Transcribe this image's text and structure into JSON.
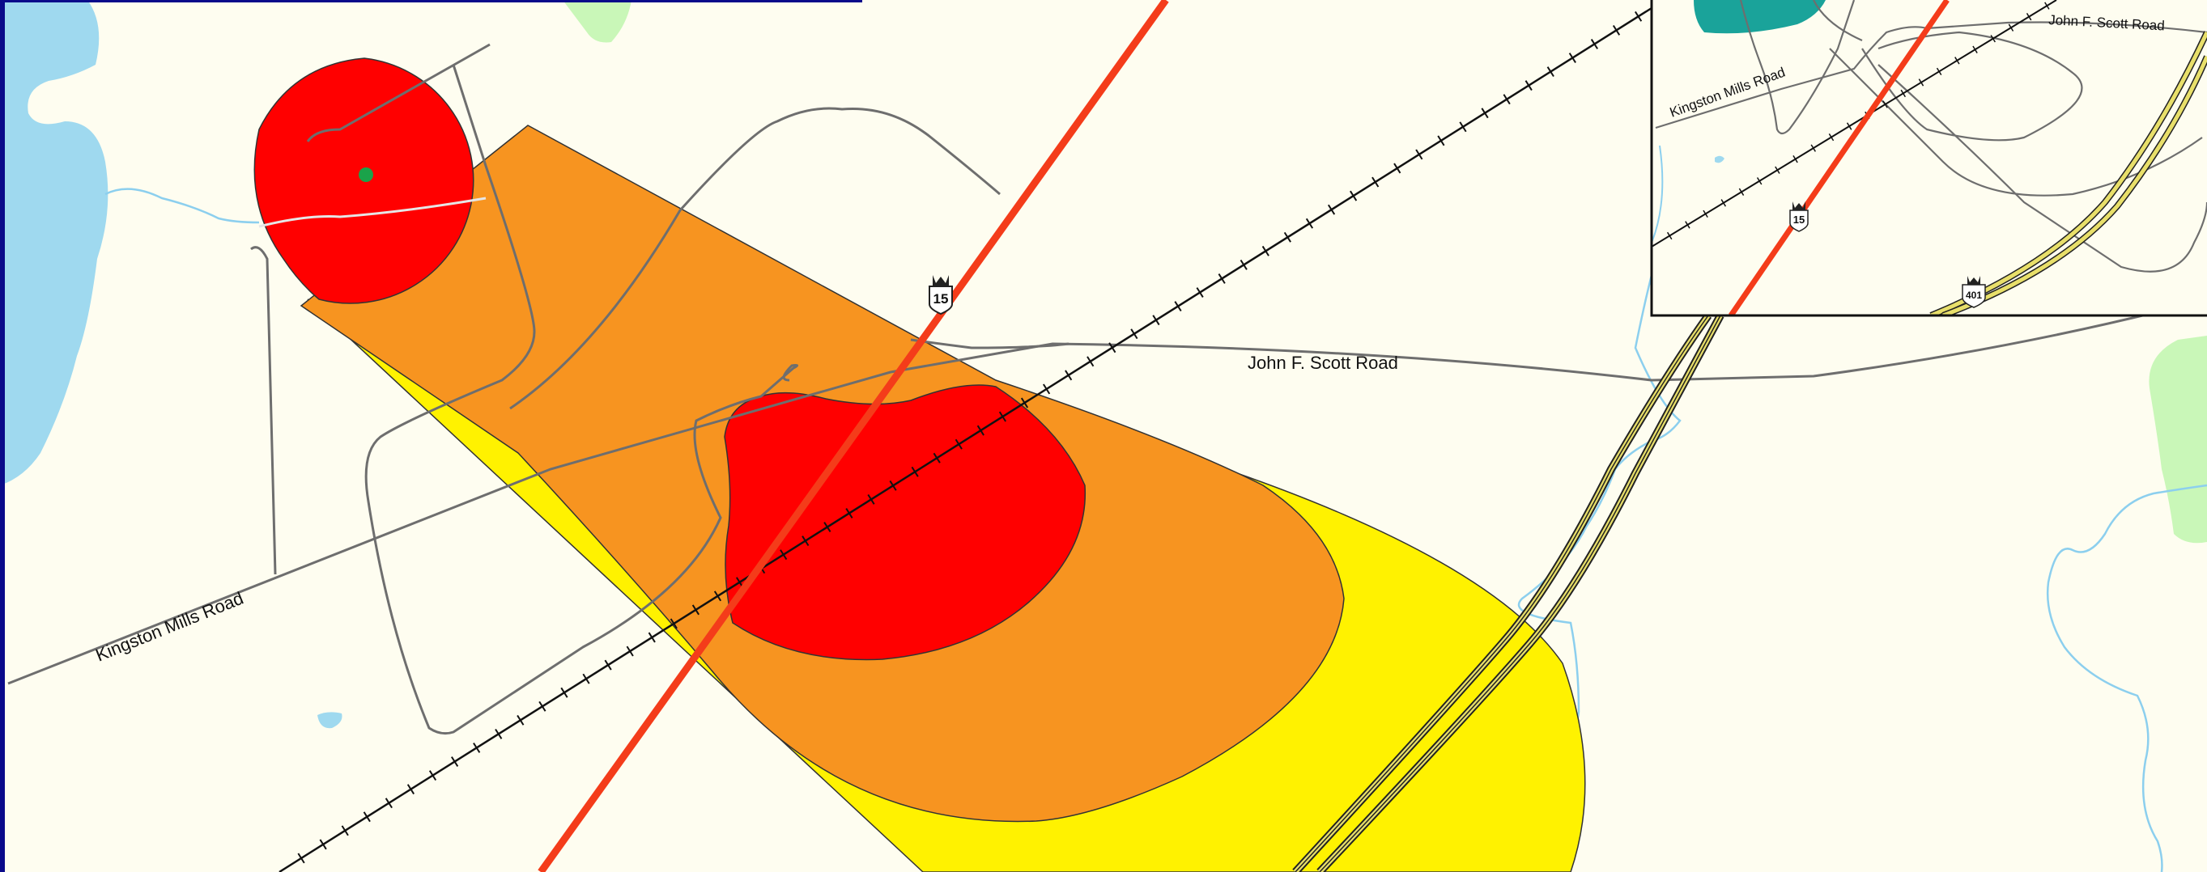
{
  "map": {
    "colors": {
      "background": "#fefdf0",
      "water": "#9fd9ef",
      "water_line": "#8ccfee",
      "park": "#c9f7b8",
      "zone_red": "#ff0000",
      "zone_orange": "#f79420",
      "zone_yellow": "#fff200",
      "highway": "#f43c1a",
      "road": "#6e6e6e",
      "railway": "#111111",
      "source_point": "#1aa34a",
      "inset_teal": "#1aa39a"
    },
    "labels": {
      "kingston_mills_road": "Kingston Mills Road",
      "john_f_scott_road": "John F. Scott Road"
    },
    "shields": {
      "hwy15": "15",
      "hwy401": "401"
    },
    "inset": {
      "kingston_mills_road": "Kingston Mills Road",
      "john_f_scott_road": "John F. Scott Road",
      "hwy15": "15",
      "hwy401": "401"
    }
  }
}
